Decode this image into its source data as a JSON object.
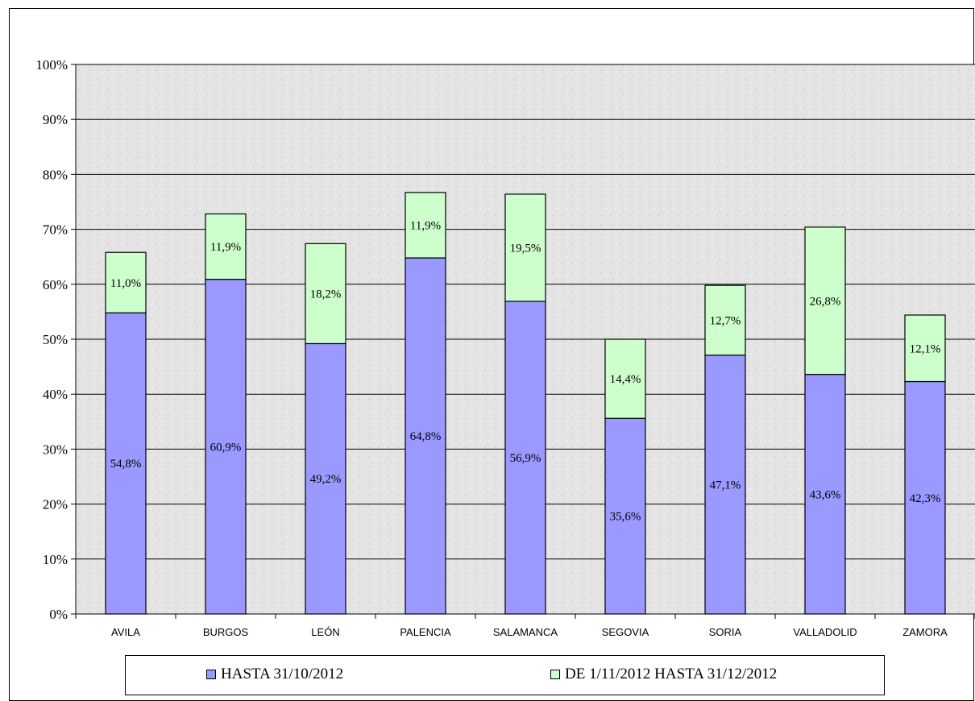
{
  "colors": {
    "series_1": "#9999ff",
    "series_2": "#ccffcc",
    "plot_background": "#e6e6e6",
    "gridline": "#000000"
  },
  "chart_data": {
    "type": "bar",
    "stacked": true,
    "categories": [
      "AVILA",
      "BURGOS",
      "LEÓN",
      "PALENCIA",
      "SALAMANCA",
      "SEGOVIA",
      "SORIA",
      "VALLADOLID",
      "ZAMORA"
    ],
    "series": [
      {
        "name": "HASTA 31/10/2012",
        "values": [
          54.8,
          60.9,
          49.2,
          64.8,
          56.9,
          35.6,
          47.1,
          43.6,
          42.3
        ],
        "labels": [
          "54,8%",
          "60,9%",
          "49,2%",
          "64,8%",
          "56,9%",
          "35,6%",
          "47,1%",
          "43,6%",
          "42,3%"
        ]
      },
      {
        "name": "DE 1/11/2012 HASTA 31/12/2012",
        "values": [
          11.0,
          11.9,
          18.2,
          11.9,
          19.5,
          14.4,
          12.7,
          26.8,
          12.1
        ],
        "labels": [
          "11,0%",
          "11,9%",
          "18,2%",
          "11,9%",
          "19,5%",
          "14,4%",
          "12,7%",
          "26,8%",
          "12,1%"
        ]
      }
    ],
    "ylim": [
      0,
      100
    ],
    "yticks": [
      "0%",
      "10%",
      "20%",
      "30%",
      "40%",
      "50%",
      "60%",
      "70%",
      "80%",
      "90%",
      "100%"
    ],
    "grid": true,
    "legend_position": "bottom"
  }
}
